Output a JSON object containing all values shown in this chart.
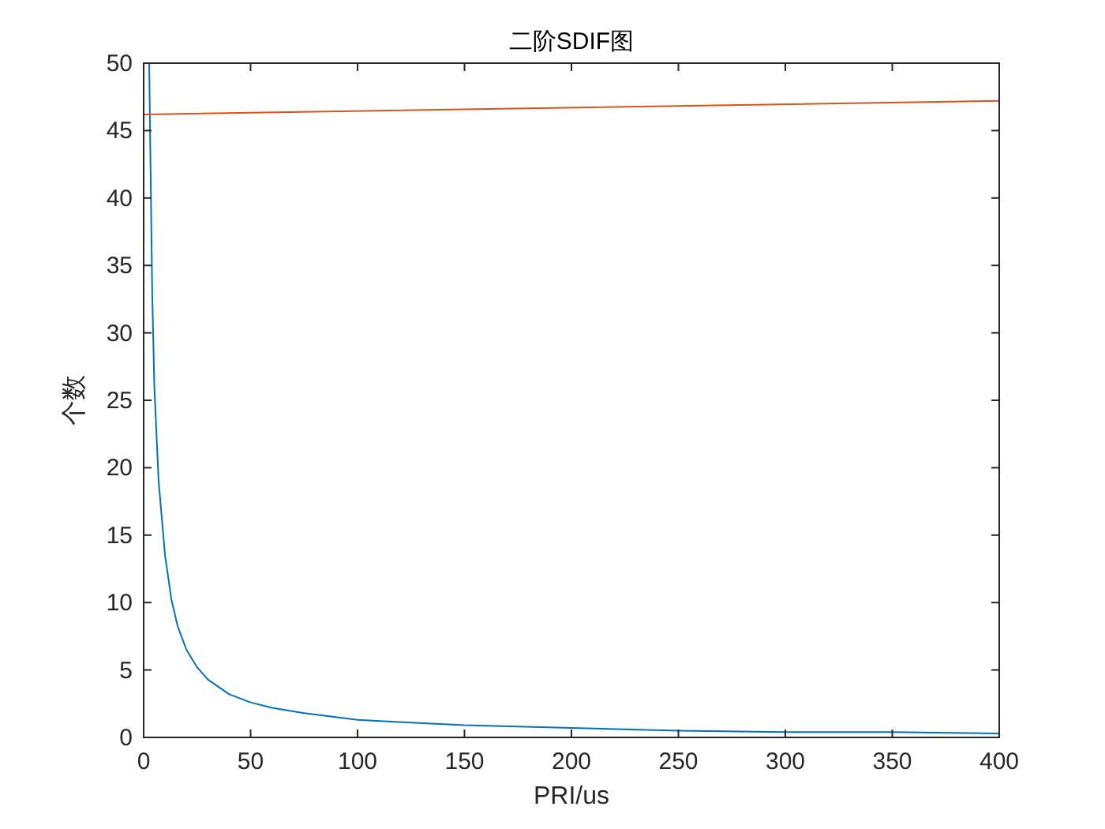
{
  "chart_data": {
    "type": "line",
    "title": "二阶SDIF图",
    "xlabel": "PRI/us",
    "ylabel": "个数",
    "xlim": [
      0,
      400
    ],
    "ylim": [
      0,
      50
    ],
    "xticks": [
      0,
      50,
      100,
      150,
      200,
      250,
      300,
      350,
      400
    ],
    "yticks": [
      0,
      5,
      10,
      15,
      20,
      25,
      30,
      35,
      40,
      45,
      50
    ],
    "grid": false,
    "marker": "none",
    "line_style": "solid",
    "series": [
      {
        "color": "#0072bd",
        "x": [
          2.6,
          3,
          4,
          5,
          7,
          10,
          13,
          16,
          20,
          25,
          30,
          40,
          50,
          60,
          75,
          100,
          125,
          150,
          200,
          250,
          300,
          350,
          400
        ],
        "values": [
          50,
          45,
          33,
          26,
          19,
          13.5,
          10.2,
          8.2,
          6.5,
          5.2,
          4.3,
          3.2,
          2.6,
          2.2,
          1.8,
          1.3,
          1.1,
          0.9,
          0.7,
          0.5,
          0.4,
          0.4,
          0.3
        ]
      },
      {
        "color": "#d95319",
        "x": [
          0,
          400
        ],
        "values": [
          46.2,
          47.2
        ]
      }
    ]
  }
}
